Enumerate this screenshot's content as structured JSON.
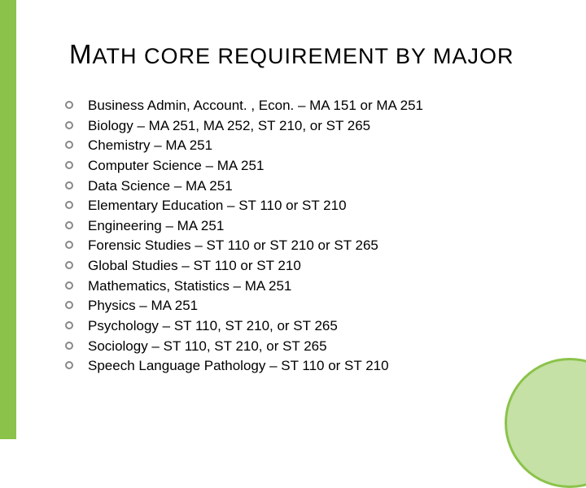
{
  "title_parts": [
    "M",
    "ATH CORE REQUIREMENT BY MAJOR"
  ],
  "title_fontsize_small": 27,
  "title_fontsize_cap": 33,
  "list_fontsize": 17,
  "bullet_border_color": "#888888",
  "left_bar_color": "#8bc34a",
  "circle_fill": "#c5e1a5",
  "circle_border": "#8bc34a",
  "background_color": "#ffffff",
  "items": [
    "Business Admin, Account. , Econ. – MA 151 or MA 251",
    "Biology – MA 251, MA 252, ST 210, or ST 265",
    "Chemistry – MA 251",
    "Computer Science – MA 251",
    "Data Science – MA 251",
    "Elementary Education – ST 110 or ST 210",
    "Engineering – MA 251",
    "Forensic Studies – ST 110 or ST 210 or ST 265",
    "Global Studies – ST 110 or ST 210",
    "Mathematics, Statistics – MA 251",
    "Physics – MA 251",
    "Psychology – ST 110, ST 210, or ST 265",
    "Sociology – ST 110, ST 210, or ST 265",
    "Speech Language Pathology – ST 110 or ST 210"
  ]
}
